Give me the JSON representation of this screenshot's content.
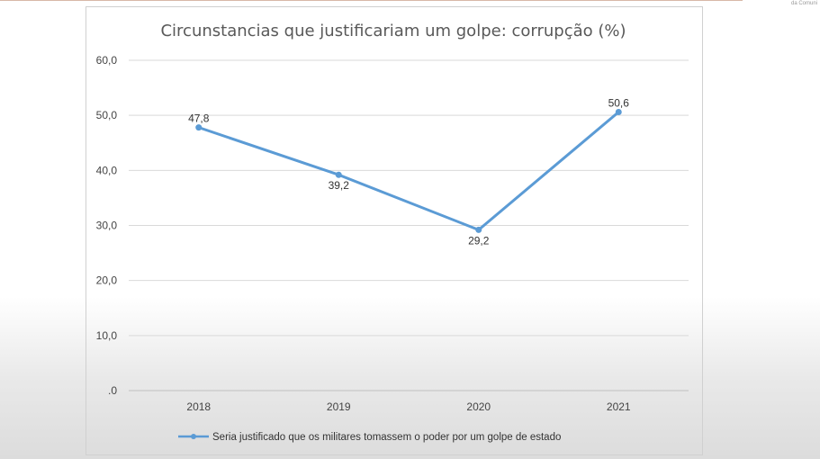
{
  "corner_label": "da Comuni",
  "chart_data": {
    "type": "line",
    "title": "Circunstancias que justificariam um golpe: corrupção (%)",
    "xlabel": "",
    "ylabel": "",
    "categories": [
      "2018",
      "2019",
      "2020",
      "2021"
    ],
    "series": [
      {
        "name": "Seria justificado que os militares tomassem o poder por um golpe de estado",
        "values": [
          47.8,
          39.2,
          29.2,
          50.6
        ],
        "labels": [
          "47,8",
          "39,2",
          "29,2",
          "50,6"
        ],
        "color": "#5b9bd5"
      }
    ],
    "ylim": [
      0,
      60
    ],
    "yticks": [
      ".0",
      "10,0",
      "20,0",
      "30,0",
      "40,0",
      "50,0",
      "60,0"
    ],
    "ytick_values": [
      0,
      10,
      20,
      30,
      40,
      50,
      60
    ],
    "grid": true,
    "legend": "bottom"
  }
}
